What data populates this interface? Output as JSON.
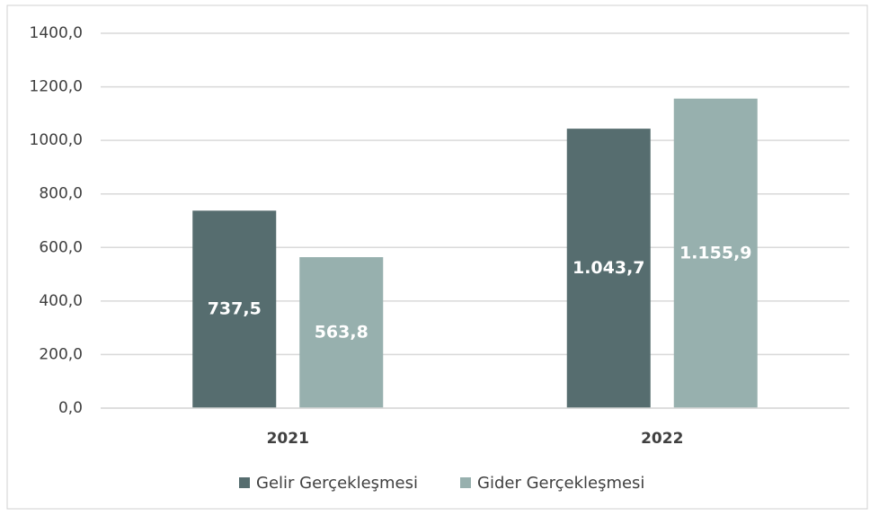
{
  "chart_data": {
    "type": "bar",
    "categories": [
      "2021",
      "2022"
    ],
    "series": [
      {
        "name": "Gelir Gerçekleşmesi",
        "color": "#566d6f",
        "values": [
          737.5,
          1043.7
        ],
        "value_labels": [
          "737,5",
          "1.043,7"
        ]
      },
      {
        "name": "Gider Gerçekleşmesi",
        "color": "#97b0ae",
        "values": [
          563.8,
          1155.9
        ],
        "value_labels": [
          "563,8",
          "1.155,9"
        ]
      }
    ],
    "ylim": [
      0,
      1400
    ],
    "yticks": [
      {
        "value": 0,
        "label": "0,0"
      },
      {
        "value": 200,
        "label": "200,0"
      },
      {
        "value": 400,
        "label": "400,0"
      },
      {
        "value": 600,
        "label": "600,0"
      },
      {
        "value": 800,
        "label": "800,0"
      },
      {
        "value": 1000,
        "label": "1000,0"
      },
      {
        "value": 1200,
        "label": "1200,0"
      },
      {
        "value": 1400,
        "label": "1400,0"
      }
    ],
    "grid": true,
    "legend": "bottom"
  }
}
